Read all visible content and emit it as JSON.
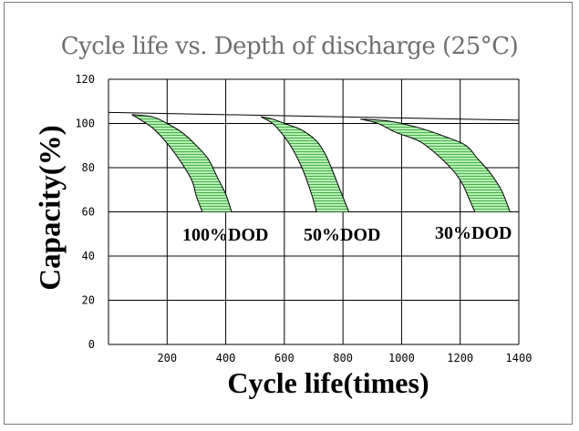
{
  "chart_data": {
    "type": "area",
    "title": "Cycle life vs. Depth of discharge (25°C)",
    "xlabel": "Cycle life(times)",
    "ylabel": "Capacity(%)",
    "xlim": [
      0,
      1400
    ],
    "ylim": [
      0,
      120
    ],
    "xticks": [
      200,
      400,
      600,
      800,
      1000,
      1200,
      1400
    ],
    "yticks": [
      0,
      20,
      40,
      60,
      80,
      100,
      120
    ],
    "grid": true,
    "fill_color": "#9ee89e",
    "line_color": "#000000",
    "series": [
      {
        "name": "100%DOD",
        "upper": {
          "x": [
            80,
            150,
            200,
            250,
            300,
            340,
            370,
            400,
            420
          ],
          "y": [
            104,
            103,
            100,
            96,
            90,
            84,
            76,
            68,
            60
          ]
        },
        "lower": {
          "x": [
            80,
            150,
            200,
            250,
            285,
            300,
            320
          ],
          "y": [
            104,
            98,
            91,
            82,
            74,
            67,
            60
          ]
        }
      },
      {
        "name": "50%DOD",
        "upper": {
          "x": [
            520,
            560,
            600,
            660,
            710,
            740,
            760,
            790,
            820
          ],
          "y": [
            103,
            102,
            100,
            97,
            92,
            86,
            80,
            70,
            60
          ]
        },
        "lower": {
          "x": [
            520,
            560,
            600,
            630,
            660,
            680,
            695,
            710
          ],
          "y": [
            103,
            100,
            94,
            88,
            80,
            73,
            67,
            60
          ]
        }
      },
      {
        "name": "30%DOD",
        "upper": {
          "x": [
            860,
            960,
            1060,
            1150,
            1220,
            1260,
            1300,
            1340,
            1370
          ],
          "y": [
            102,
            101,
            98,
            94,
            90,
            84,
            78,
            70,
            60
          ]
        },
        "lower": {
          "x": [
            860,
            920,
            980,
            1060,
            1120,
            1180,
            1210,
            1230,
            1250
          ],
          "y": [
            102,
            100,
            96,
            92,
            86,
            78,
            72,
            66,
            60
          ]
        }
      }
    ],
    "baseline": {
      "x": [
        0,
        1400
      ],
      "y": [
        105,
        101.5
      ]
    },
    "annotations": [
      "100%DOD",
      "50%DOD",
      "30%DOD"
    ]
  }
}
